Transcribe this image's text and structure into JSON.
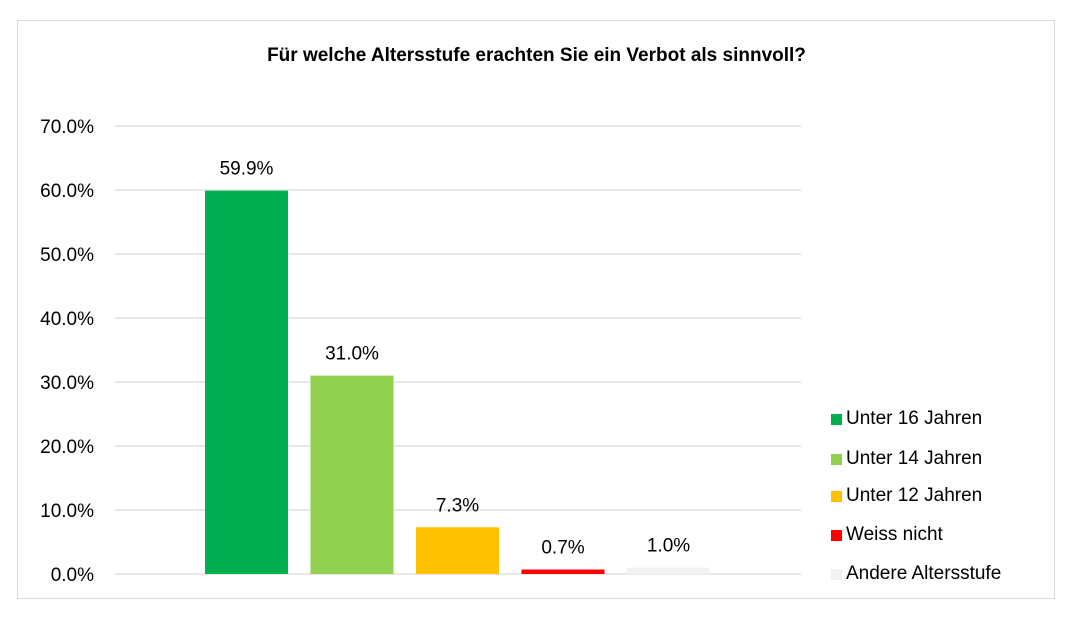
{
  "chart_data": {
    "type": "bar",
    "title": "Für welche Altersstufe erachten Sie ein Verbot als sinnvoll?",
    "xlabel": "",
    "ylabel": "",
    "ylim": [
      0,
      70
    ],
    "yticks": [
      "0.0%",
      "10.0%",
      "20.0%",
      "30.0%",
      "40.0%",
      "50.0%",
      "60.0%",
      "70.0%"
    ],
    "grid": true,
    "legend_position": "right",
    "categories": [
      "Unter 16 Jahren",
      "Unter 14 Jahren",
      "Unter 12 Jahren",
      "Weiss nicht",
      "Andere Altersstufe"
    ],
    "values": [
      59.9,
      31.0,
      7.3,
      0.7,
      1.0
    ],
    "labels": [
      "59.9%",
      "31.0%",
      "7.3%",
      "0.7%",
      "1.0%"
    ],
    "colors": [
      "#00b050",
      "#92d050",
      "#ffc000",
      "#ff0000",
      "#f2f2f2"
    ]
  }
}
